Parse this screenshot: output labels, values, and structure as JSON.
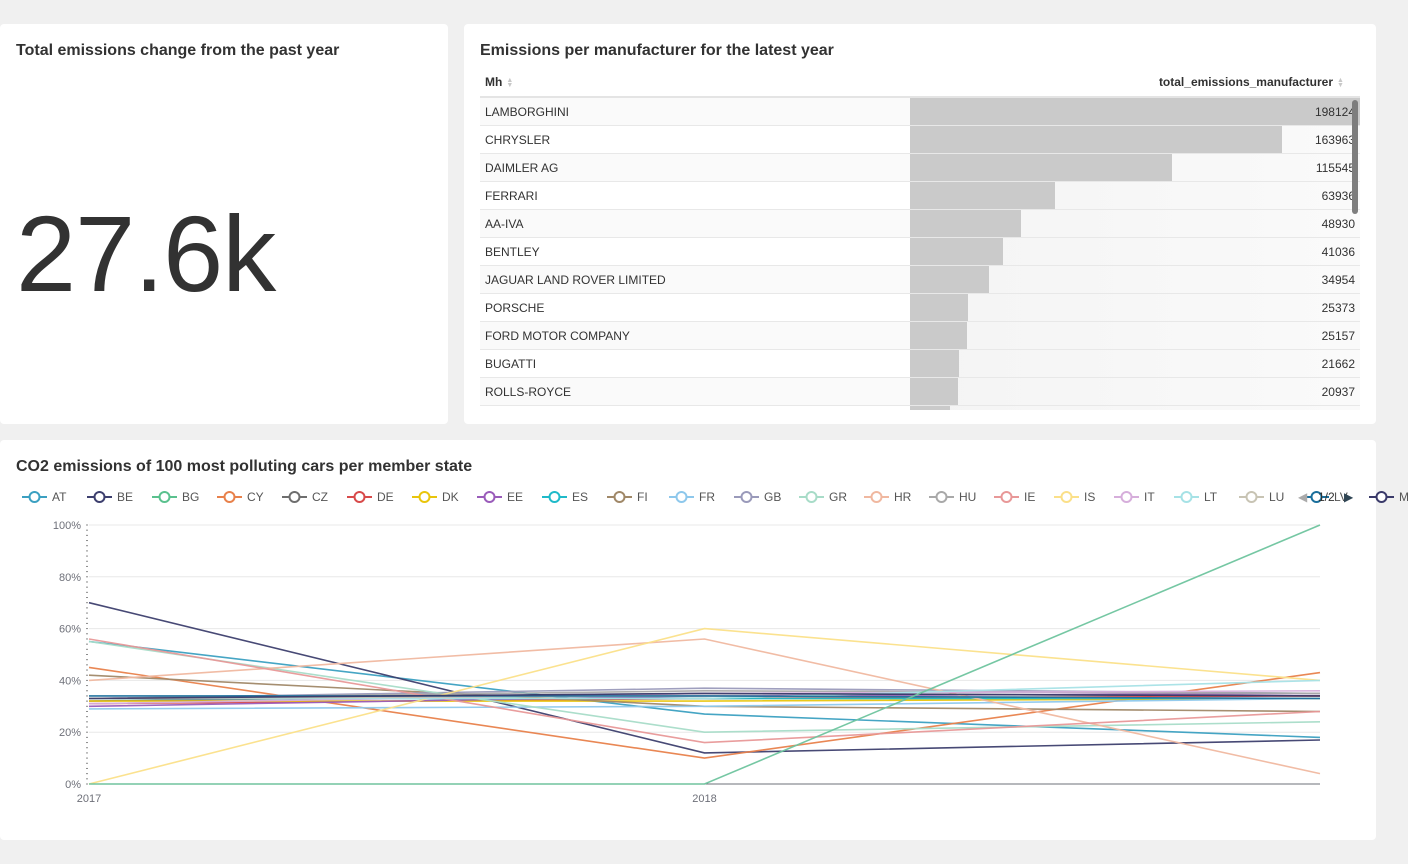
{
  "kpi": {
    "title": "Total emissions change from the past year",
    "value": "27.6k"
  },
  "table": {
    "title": "Emissions per manufacturer for the latest year",
    "col_name": "Mh",
    "col_value": "total_emissions_manufacturer",
    "max_value": 198124,
    "rows": [
      {
        "name": "LAMBORGHINI",
        "value": 198124
      },
      {
        "name": "CHRYSLER",
        "value": 163963
      },
      {
        "name": "DAIMLER AG",
        "value": 115545
      },
      {
        "name": "FERRARI",
        "value": 63936
      },
      {
        "name": "AA-IVA",
        "value": 48930
      },
      {
        "name": "BENTLEY",
        "value": 41036
      },
      {
        "name": "JAGUAR LAND ROVER LIMITED",
        "value": 34954
      },
      {
        "name": "PORSCHE",
        "value": 25373
      },
      {
        "name": "FORD MOTOR COMPANY",
        "value": 25157
      },
      {
        "name": "BUGATTI",
        "value": 21662
      },
      {
        "name": "ROLLS-ROYCE",
        "value": 20937
      },
      {
        "name": "",
        "value": 17500
      }
    ]
  },
  "legend_pager": {
    "prev_icon": "triangle-left-icon",
    "page": "1/2",
    "next_icon": "triangle-right-icon"
  },
  "chart_data": {
    "type": "line",
    "title": "CO2 emissions of 100 most polluting cars per member state",
    "x": [
      "2017",
      "2018",
      "2019"
    ],
    "x_tick_labels": [
      "2017",
      "2018"
    ],
    "ylim": [
      0,
      100
    ],
    "y_ticks": [
      "0%",
      "20%",
      "40%",
      "60%",
      "80%",
      "100%"
    ],
    "legend_position": "top",
    "grid": true,
    "series": [
      {
        "name": "AT",
        "color": "#3ba0c1",
        "values": [
          55,
          27,
          18
        ]
      },
      {
        "name": "BE",
        "color": "#3d3f6e",
        "values": [
          70,
          12,
          17
        ]
      },
      {
        "name": "BG",
        "color": "#5ac18e",
        "values": [
          33,
          33,
          33
        ]
      },
      {
        "name": "CY",
        "color": "#e8814b",
        "values": [
          45,
          10,
          43
        ]
      },
      {
        "name": "CZ",
        "color": "#6e6e6e",
        "values": [
          32,
          35,
          34
        ]
      },
      {
        "name": "DE",
        "color": "#d84a4a",
        "values": [
          31,
          33,
          34
        ]
      },
      {
        "name": "DK",
        "color": "#e9c50c",
        "values": [
          32,
          32,
          33
        ]
      },
      {
        "name": "EE",
        "color": "#9a5cba",
        "values": [
          30,
          34,
          35
        ]
      },
      {
        "name": "ES",
        "color": "#1fbac9",
        "values": [
          33,
          33,
          33
        ]
      },
      {
        "name": "FI",
        "color": "#a08868",
        "values": [
          42,
          30,
          28
        ]
      },
      {
        "name": "FR",
        "color": "#8ec8ec",
        "values": [
          29,
          30,
          33
        ]
      },
      {
        "name": "GB",
        "color": "#9a9aba",
        "values": [
          33,
          37,
          35
        ]
      },
      {
        "name": "GR",
        "color": "#a8dcc8",
        "values": [
          55,
          20,
          24
        ]
      },
      {
        "name": "HR",
        "color": "#f0b8a0",
        "values": [
          40,
          56,
          4
        ]
      },
      {
        "name": "HU",
        "color": "#a9a9a9",
        "values": [
          33,
          36,
          35
        ]
      },
      {
        "name": "IE",
        "color": "#e89898",
        "values": [
          56,
          16,
          28
        ]
      },
      {
        "name": "IS",
        "color": "#fbe089",
        "values": [
          0,
          60,
          40
        ]
      },
      {
        "name": "IT",
        "color": "#d6aedb",
        "values": [
          31,
          35,
          36
        ]
      },
      {
        "name": "LT",
        "color": "#a6e2e6",
        "values": [
          33,
          33,
          40
        ]
      },
      {
        "name": "LU",
        "color": "#c8c4b4",
        "values": [
          33,
          34,
          33
        ]
      },
      {
        "name": "LV",
        "color": "#1a6f9c",
        "values": [
          34,
          34,
          33
        ]
      },
      {
        "name": "MT",
        "color": "#3a3a6a",
        "values": [
          33,
          35,
          34
        ]
      },
      {
        "name": "",
        "color": "#6ec49e",
        "values": [
          0,
          0,
          100
        ]
      }
    ]
  }
}
